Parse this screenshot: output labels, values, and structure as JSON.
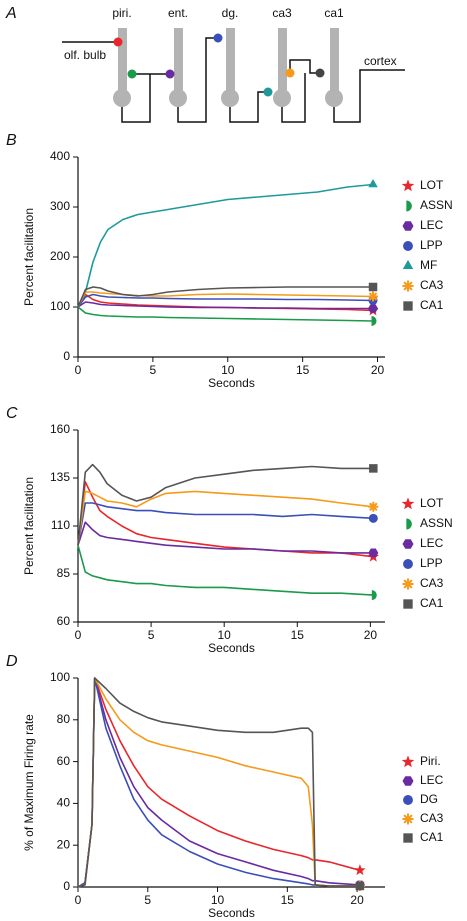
{
  "diagram": {
    "panel_label": "A",
    "regions": [
      "piri.",
      "ent.",
      "dg.",
      "ca3",
      "ca1"
    ],
    "input": "olf. bulb",
    "output": "cortex"
  },
  "chart_data": [
    {
      "type": "line",
      "panel_label": "B",
      "ylabel": "Percent facilitation",
      "xlabel": "Seconds",
      "xlim": [
        0,
        20.5
      ],
      "ylim": [
        0,
        400
      ],
      "xticks": [
        0,
        5,
        10,
        15,
        20
      ],
      "yticks": [
        0,
        100,
        200,
        300,
        400
      ],
      "x": [
        0,
        0.5,
        1,
        1.5,
        2,
        3,
        4,
        5,
        6,
        8,
        10,
        12,
        14,
        16,
        18,
        19.7
      ],
      "series": [
        {
          "name": "LOT",
          "color": "#e8262b",
          "marker": "star",
          "values": [
            100,
            125,
            115,
            110,
            108,
            106,
            104,
            103,
            102,
            100,
            99,
            98,
            97,
            96,
            95,
            93
          ]
        },
        {
          "name": "ASSN",
          "color": "#1a9a4a",
          "marker": "half-circle",
          "values": [
            100,
            88,
            85,
            83,
            82,
            81,
            80,
            80,
            79,
            78,
            77,
            76,
            75,
            74,
            73,
            72
          ]
        },
        {
          "name": "LEC",
          "color": "#6a2aa0",
          "marker": "hexagon",
          "values": [
            100,
            110,
            108,
            105,
            104,
            103,
            102,
            101,
            100,
            99,
            99,
            98,
            98,
            97,
            97,
            97
          ]
        },
        {
          "name": "LPP",
          "color": "#3a4fb8",
          "marker": "circle",
          "values": [
            100,
            120,
            125,
            122,
            120,
            119,
            118,
            118,
            117,
            116,
            116,
            116,
            115,
            115,
            114,
            113
          ]
        },
        {
          "name": "MF",
          "color": "#1f9a9a",
          "marker": "triangle",
          "values": [
            100,
            130,
            190,
            230,
            255,
            275,
            285,
            290,
            295,
            305,
            315,
            320,
            325,
            330,
            340,
            345
          ]
        },
        {
          "name": "CA3",
          "color": "#f59a1a",
          "marker": "asterisk",
          "values": [
            100,
            130,
            130,
            128,
            127,
            125,
            123,
            122,
            122,
            125,
            126,
            125,
            124,
            123,
            122,
            121
          ]
        },
        {
          "name": "CA1",
          "color": "#555555",
          "marker": "square",
          "values": [
            100,
            135,
            140,
            138,
            132,
            125,
            122,
            125,
            130,
            135,
            138,
            139,
            140,
            140,
            140,
            140
          ]
        }
      ]
    },
    {
      "type": "line",
      "panel_label": "C",
      "ylabel": "Percent facilitation",
      "xlabel": "Seconds",
      "xlim": [
        0,
        21
      ],
      "ylim": [
        60,
        160
      ],
      "xticks": [
        0,
        5,
        10,
        15,
        20
      ],
      "yticks": [
        60,
        85,
        110,
        135,
        160
      ],
      "x": [
        0,
        0.5,
        1,
        1.5,
        2,
        3,
        4,
        5,
        6,
        8,
        10,
        12,
        14,
        16,
        18,
        20.2
      ],
      "series": [
        {
          "name": "LOT",
          "color": "#e8262b",
          "marker": "star",
          "values": [
            100,
            133,
            125,
            118,
            115,
            110,
            106,
            104,
            103,
            101,
            99,
            98,
            97,
            96,
            96,
            94
          ]
        },
        {
          "name": "ASSN",
          "color": "#1a9a4a",
          "marker": "half-circle",
          "values": [
            100,
            86,
            84,
            83,
            82,
            81,
            80,
            80,
            79,
            78,
            78,
            77,
            76,
            75,
            75,
            74
          ]
        },
        {
          "name": "LEC",
          "color": "#6a2aa0",
          "marker": "hexagon",
          "values": [
            100,
            112,
            108,
            105,
            104,
            103,
            102,
            101,
            100,
            99,
            98,
            98,
            97,
            97,
            96,
            96
          ]
        },
        {
          "name": "LPP",
          "color": "#3a4fb8",
          "marker": "circle",
          "values": [
            100,
            122,
            122,
            121,
            120,
            119,
            118,
            118,
            117,
            116,
            116,
            116,
            115,
            116,
            115,
            114
          ]
        },
        {
          "name": "CA3",
          "color": "#f59a1a",
          "marker": "asterisk",
          "values": [
            100,
            128,
            127,
            125,
            123,
            122,
            120,
            124,
            127,
            128,
            127,
            126,
            125,
            124,
            122,
            120
          ]
        },
        {
          "name": "CA1",
          "color": "#555555",
          "marker": "square",
          "values": [
            100,
            138,
            142,
            138,
            132,
            126,
            123,
            125,
            130,
            135,
            137,
            139,
            140,
            141,
            140,
            140
          ]
        }
      ]
    },
    {
      "type": "line",
      "panel_label": "D",
      "ylabel": "% of Maximum Firing rate",
      "xlabel": "Seconds",
      "xlim": [
        0,
        22
      ],
      "ylim": [
        0,
        100
      ],
      "xticks": [
        0,
        5,
        10,
        15,
        20
      ],
      "yticks": [
        0,
        20,
        40,
        60,
        80,
        100
      ],
      "x": [
        0,
        0.5,
        1,
        1.2,
        2,
        3,
        4,
        5,
        6,
        8,
        10,
        12,
        14,
        16,
        16.5,
        16.8,
        17,
        18,
        20.2
      ],
      "series": [
        {
          "name": "Piri.",
          "color": "#e8262b",
          "marker": "star",
          "values": [
            0,
            2,
            30,
            100,
            85,
            70,
            58,
            48,
            42,
            34,
            27,
            22,
            18,
            15,
            14,
            13,
            13,
            12,
            8
          ]
        },
        {
          "name": "LEC",
          "color": "#6a2aa0",
          "marker": "hexagon",
          "values": [
            0,
            2,
            30,
            100,
            80,
            62,
            48,
            38,
            32,
            22,
            16,
            12,
            8,
            5,
            4,
            3,
            3,
            2,
            1
          ]
        },
        {
          "name": "DG",
          "color": "#3a4fb8",
          "marker": "circle",
          "values": [
            0,
            2,
            30,
            100,
            76,
            58,
            42,
            32,
            25,
            17,
            11,
            7,
            4,
            2,
            1.5,
            1,
            1,
            0.5,
            0.5
          ]
        },
        {
          "name": "CA3",
          "color": "#f59a1a",
          "marker": "asterisk",
          "values": [
            0,
            1,
            30,
            100,
            90,
            80,
            74,
            70,
            68,
            65,
            62,
            58,
            55,
            52,
            48,
            30,
            1,
            0.5,
            0.5
          ]
        },
        {
          "name": "CA1",
          "color": "#555555",
          "marker": "square",
          "values": [
            0,
            1,
            30,
            100,
            95,
            88,
            84,
            81,
            79,
            77,
            75,
            74,
            74,
            76,
            76,
            74,
            1,
            0.5,
            0.5
          ]
        }
      ]
    }
  ]
}
